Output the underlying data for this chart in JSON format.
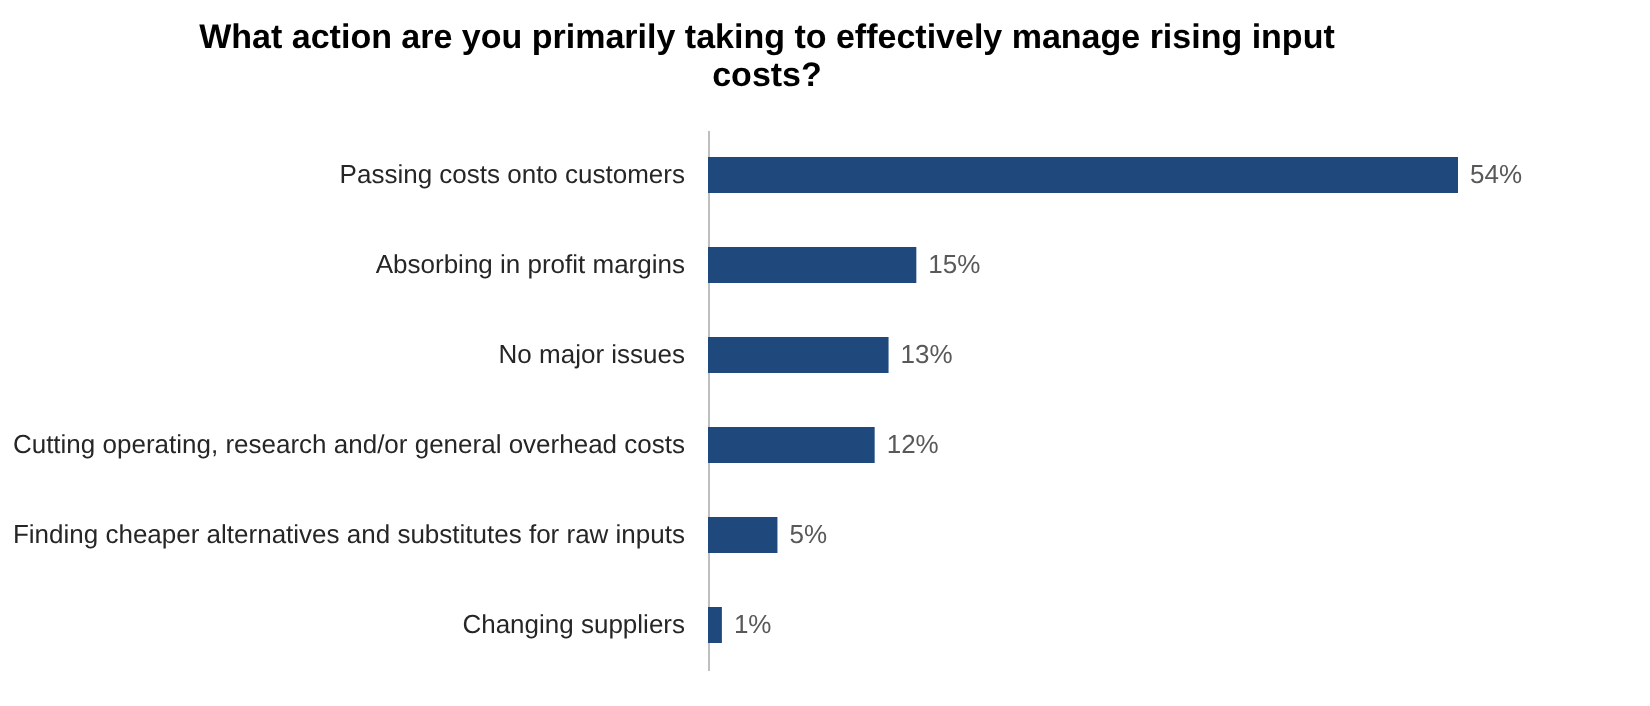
{
  "chart_data": {
    "type": "bar",
    "orientation": "horizontal",
    "title": "What action are you primarily taking to effectively manage rising input costs?",
    "categories": [
      "Passing costs onto customers",
      "Absorbing in profit margins",
      "No major issues",
      "Cutting operating, research and/or general overhead costs",
      "Finding cheaper alternatives and substitutes for raw inputs",
      "Changing suppliers"
    ],
    "values": [
      54,
      15,
      13,
      12,
      5,
      1
    ],
    "value_labels": [
      "54%",
      "15%",
      "13%",
      "12%",
      "5%",
      "1%"
    ],
    "color": "#1f497d"
  }
}
